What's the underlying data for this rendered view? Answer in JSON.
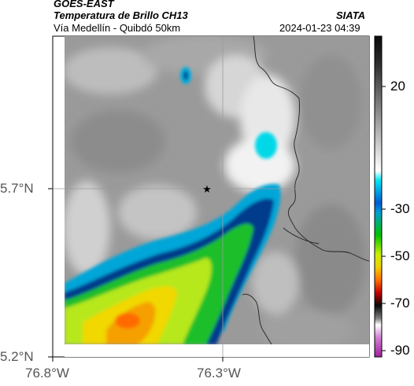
{
  "header": {
    "satellite": "GOES-EAST",
    "product": "Temperatura de Brillo CH13",
    "location": "Vía Medellín - Quibdó 50km",
    "source": "SIATA",
    "timestamp": "2024-01-23 04:39"
  },
  "axes": {
    "y_ticks": [
      "5.7°N",
      "5.2°N"
    ],
    "x_ticks": [
      "76.8°W",
      "76.3°W"
    ]
  },
  "colorbar": {
    "ticks": [
      "20",
      "-30",
      "-50",
      "-70",
      "-90"
    ]
  },
  "map": {
    "marker_icon": "star-icon",
    "gridlines": true
  }
}
